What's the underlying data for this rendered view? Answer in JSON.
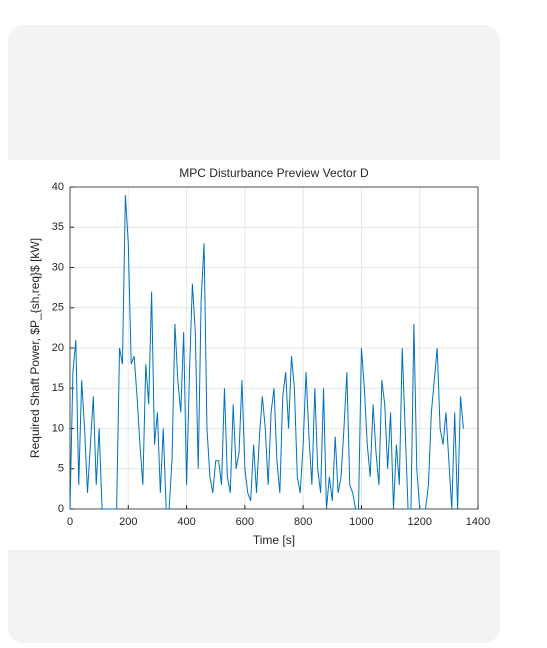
{
  "chart_data": {
    "type": "line",
    "title": "MPC Disturbance Preview Vector D",
    "xlabel": "Time [s]",
    "ylabel": "Required Shaft Power, $P_{sh,req}$ [kW]",
    "x": [
      0,
      10,
      20,
      30,
      40,
      50,
      60,
      70,
      80,
      90,
      100,
      110,
      120,
      130,
      140,
      150,
      160,
      170,
      180,
      190,
      200,
      210,
      220,
      230,
      240,
      250,
      260,
      270,
      280,
      290,
      300,
      310,
      320,
      330,
      340,
      350,
      360,
      370,
      380,
      390,
      400,
      410,
      420,
      430,
      440,
      450,
      460,
      470,
      480,
      490,
      500,
      510,
      520,
      530,
      540,
      550,
      560,
      570,
      580,
      590,
      600,
      610,
      620,
      630,
      640,
      650,
      660,
      670,
      680,
      690,
      700,
      710,
      720,
      730,
      740,
      750,
      760,
      770,
      780,
      790,
      800,
      810,
      820,
      830,
      840,
      850,
      860,
      870,
      880,
      890,
      900,
      910,
      920,
      930,
      940,
      950,
      960,
      970,
      980,
      990,
      1000,
      1010,
      1020,
      1030,
      1040,
      1050,
      1060,
      1070,
      1080,
      1090,
      1100,
      1110,
      1120,
      1130,
      1140,
      1150,
      1160,
      1170,
      1180,
      1190,
      1200,
      1210,
      1220,
      1230,
      1240,
      1250,
      1260,
      1270,
      1280,
      1290,
      1300,
      1310,
      1320,
      1330,
      1340,
      1350
    ],
    "series": [
      {
        "color": "#0072bd",
        "values": [
          0,
          17,
          21,
          3,
          16,
          10,
          2,
          8,
          14,
          3,
          10,
          0,
          0,
          0,
          0,
          0,
          0,
          20,
          18,
          39,
          33,
          18,
          19,
          14,
          8,
          3,
          18,
          13,
          27,
          8,
          12,
          2,
          10,
          0,
          0,
          6,
          23,
          16,
          12,
          22,
          3,
          17,
          28,
          22,
          5,
          26,
          33,
          10,
          4,
          2,
          6,
          6,
          3,
          15,
          4,
          2,
          13,
          5,
          7,
          16,
          5,
          2,
          1,
          8,
          2,
          9,
          14,
          10,
          3,
          12,
          15,
          6,
          2,
          14,
          17,
          10,
          19,
          15,
          4,
          2,
          8,
          17,
          9,
          3,
          15,
          5,
          2,
          15,
          0,
          4,
          1,
          9,
          2,
          4,
          10,
          17,
          3,
          2,
          0,
          0,
          20,
          15,
          8,
          4,
          13,
          7,
          3,
          16,
          13,
          5,
          12,
          0,
          8,
          3,
          20,
          10,
          0,
          0,
          23,
          5,
          0,
          0,
          0,
          3,
          12,
          16,
          20,
          10,
          8,
          12,
          6,
          0,
          12,
          0,
          14,
          10
        ]
      }
    ],
    "xlim": [
      0,
      1400
    ],
    "xticks": [
      0,
      200,
      400,
      600,
      800,
      1000,
      1200,
      1400
    ],
    "ylim": [
      0,
      40
    ],
    "yticks": [
      0,
      5,
      10,
      15,
      20,
      25,
      30,
      35,
      40
    ],
    "grid": true
  }
}
